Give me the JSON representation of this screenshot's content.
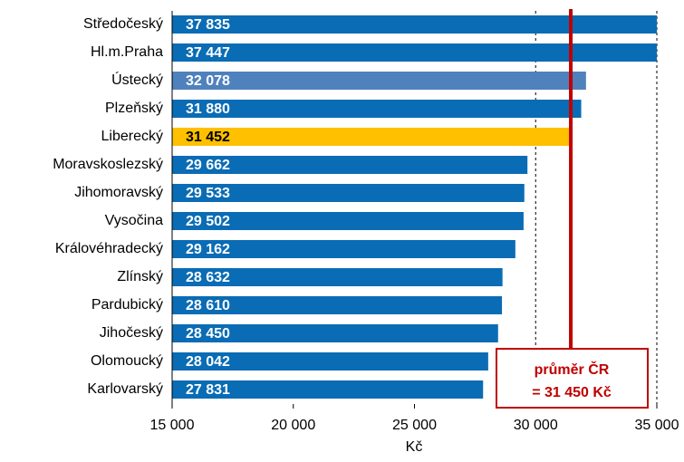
{
  "chart_data": {
    "type": "bar",
    "orientation": "horizontal",
    "categories": [
      "Středočeský",
      "Hl.m.Praha",
      "Ústecký",
      "Plzeňský",
      "Liberecký",
      "Moravskoslezský",
      "Jihomoravský",
      "Vysočina",
      "Královéhradecký",
      "Zlínský",
      "Pardubický",
      "Jihočeský",
      "Olomoucký",
      "Karlovarský"
    ],
    "values": [
      37835,
      37447,
      32078,
      31880,
      31452,
      29662,
      29533,
      29502,
      29162,
      28632,
      28610,
      28450,
      28042,
      27831
    ],
    "value_labels": [
      "37 835",
      "37 447",
      "32 078",
      "31 880",
      "31 452",
      "29 662",
      "29 533",
      "29 502",
      "29 162",
      "28 632",
      "28 610",
      "28 450",
      "28 042",
      "27 831"
    ],
    "colors": [
      "#0a6cb5",
      "#0a6cb5",
      "#4f81bd",
      "#0a6cb5",
      "#ffc000",
      "#0a6cb5",
      "#0a6cb5",
      "#0a6cb5",
      "#0a6cb5",
      "#0a6cb5",
      "#0a6cb5",
      "#0a6cb5",
      "#0a6cb5",
      "#0a6cb5"
    ],
    "label_colors": [
      "#ffffff",
      "#ffffff",
      "#ffffff",
      "#ffffff",
      "#000000",
      "#ffffff",
      "#ffffff",
      "#ffffff",
      "#ffffff",
      "#ffffff",
      "#ffffff",
      "#ffffff",
      "#ffffff",
      "#ffffff"
    ],
    "xlabel": "Kč",
    "xlim": [
      15000,
      35000
    ],
    "xticks": [
      {
        "value": 15000,
        "label": "15 000"
      },
      {
        "value": 20000,
        "label": "20 000"
      },
      {
        "value": 25000,
        "label": "25 000"
      },
      {
        "value": 30000,
        "label": "30 000"
      },
      {
        "value": 35000,
        "label": "35 000"
      }
    ],
    "gridlines": [
      30000,
      35000
    ],
    "average": 31450,
    "average_color": "#c00000",
    "annotation": [
      "průměr ČR",
      "= 31 450 Kč"
    ]
  }
}
